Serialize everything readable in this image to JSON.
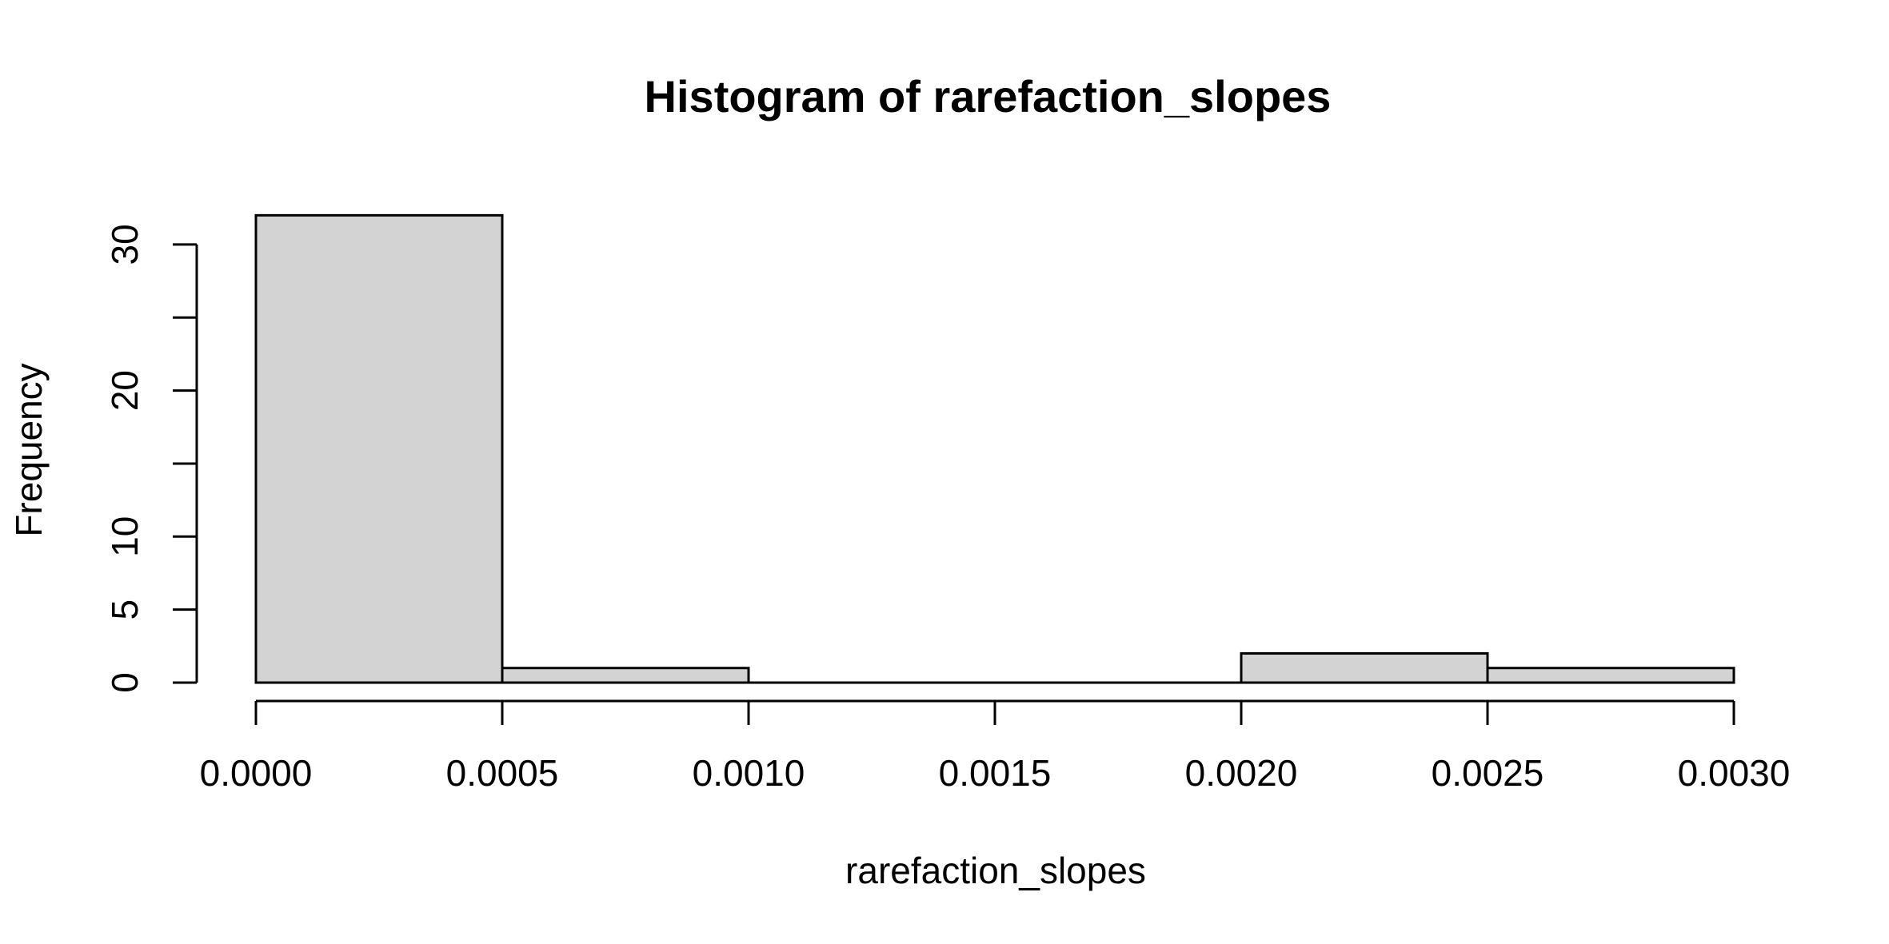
{
  "chart_data": {
    "type": "bar",
    "title": "Histogram of rarefaction_slopes",
    "xlabel": "rarefaction_slopes",
    "ylabel": "Frequency",
    "bins": [
      {
        "start": 0.0,
        "end": 0.0005,
        "count": 32
      },
      {
        "start": 0.0005,
        "end": 0.001,
        "count": 1
      },
      {
        "start": 0.001,
        "end": 0.0015,
        "count": 0
      },
      {
        "start": 0.0015,
        "end": 0.002,
        "count": 0
      },
      {
        "start": 0.002,
        "end": 0.0025,
        "count": 2
      },
      {
        "start": 0.0025,
        "end": 0.003,
        "count": 1
      }
    ],
    "xlim": [
      0.0,
      0.003
    ],
    "ylim": [
      0,
      30
    ],
    "x_ticks": [
      0.0,
      0.0005,
      0.001,
      0.0015,
      0.002,
      0.0025,
      0.003
    ],
    "x_tick_labels": [
      "0.0000",
      "0.0005",
      "0.0010",
      "0.0015",
      "0.0020",
      "0.0025",
      "0.0030"
    ],
    "y_ticks": [
      0,
      5,
      10,
      15,
      20,
      25,
      30
    ],
    "y_tick_labels": [
      "0",
      "5",
      "10",
      "",
      "20",
      "",
      "30"
    ],
    "bar_color": "#d3d3d3",
    "grid": false
  }
}
